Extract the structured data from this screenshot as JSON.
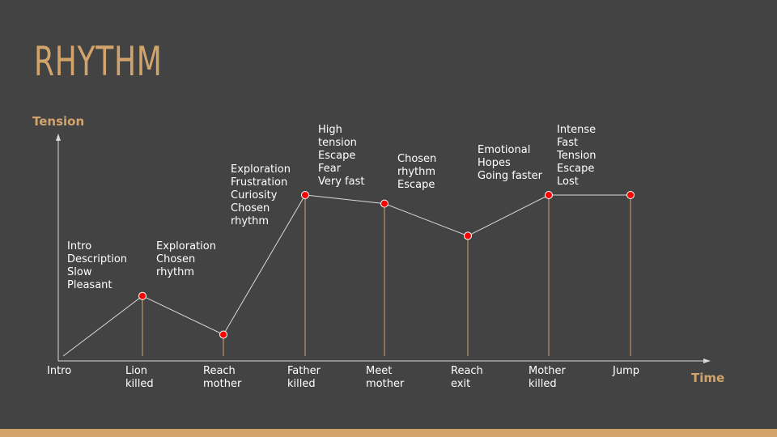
{
  "slide": {
    "title": "RHYTHM"
  },
  "colors": {
    "background": "#434343",
    "accent": "#d2a46c",
    "axis": "#d9d9d9",
    "line": "#d9d9d9",
    "marker": "#ff0000",
    "stem": "#d2a46c",
    "text": "#ffffff"
  },
  "chart_data": {
    "type": "line",
    "title": "",
    "ylabel": "Tension",
    "xlabel": "Time",
    "grid": false,
    "categories": [
      [
        "Intro"
      ],
      [
        "Lion",
        "killed"
      ],
      [
        "Reach",
        "mother"
      ],
      [
        "Father",
        "killed"
      ],
      [
        "Meet",
        "mother"
      ],
      [
        "Reach",
        "exit"
      ],
      [
        "Mother",
        "killed"
      ],
      [
        "Jump"
      ]
    ],
    "values": [
      0,
      2.8,
      1,
      7.5,
      7.1,
      5.6,
      7.5,
      7.5
    ],
    "ylim": [
      0,
      10
    ],
    "markers": [
      false,
      true,
      true,
      true,
      true,
      true,
      true,
      true
    ],
    "annotations": [
      [
        "Intro",
        "Description",
        "Slow",
        "Pleasant"
      ],
      [
        "Exploration",
        "Chosen",
        "rhythm"
      ],
      [
        "Exploration",
        "Frustration",
        "Curiosity",
        "Chosen",
        "rhythm"
      ],
      [
        "High",
        "tension",
        "Escape",
        "Fear",
        "Very fast"
      ],
      [
        "Chosen",
        "rhythm",
        "Escape"
      ],
      [
        "Emotional",
        "Hopes",
        "Going faster"
      ],
      [
        "Intense",
        "Fast",
        "Tension",
        "Escape",
        "Lost"
      ]
    ]
  }
}
